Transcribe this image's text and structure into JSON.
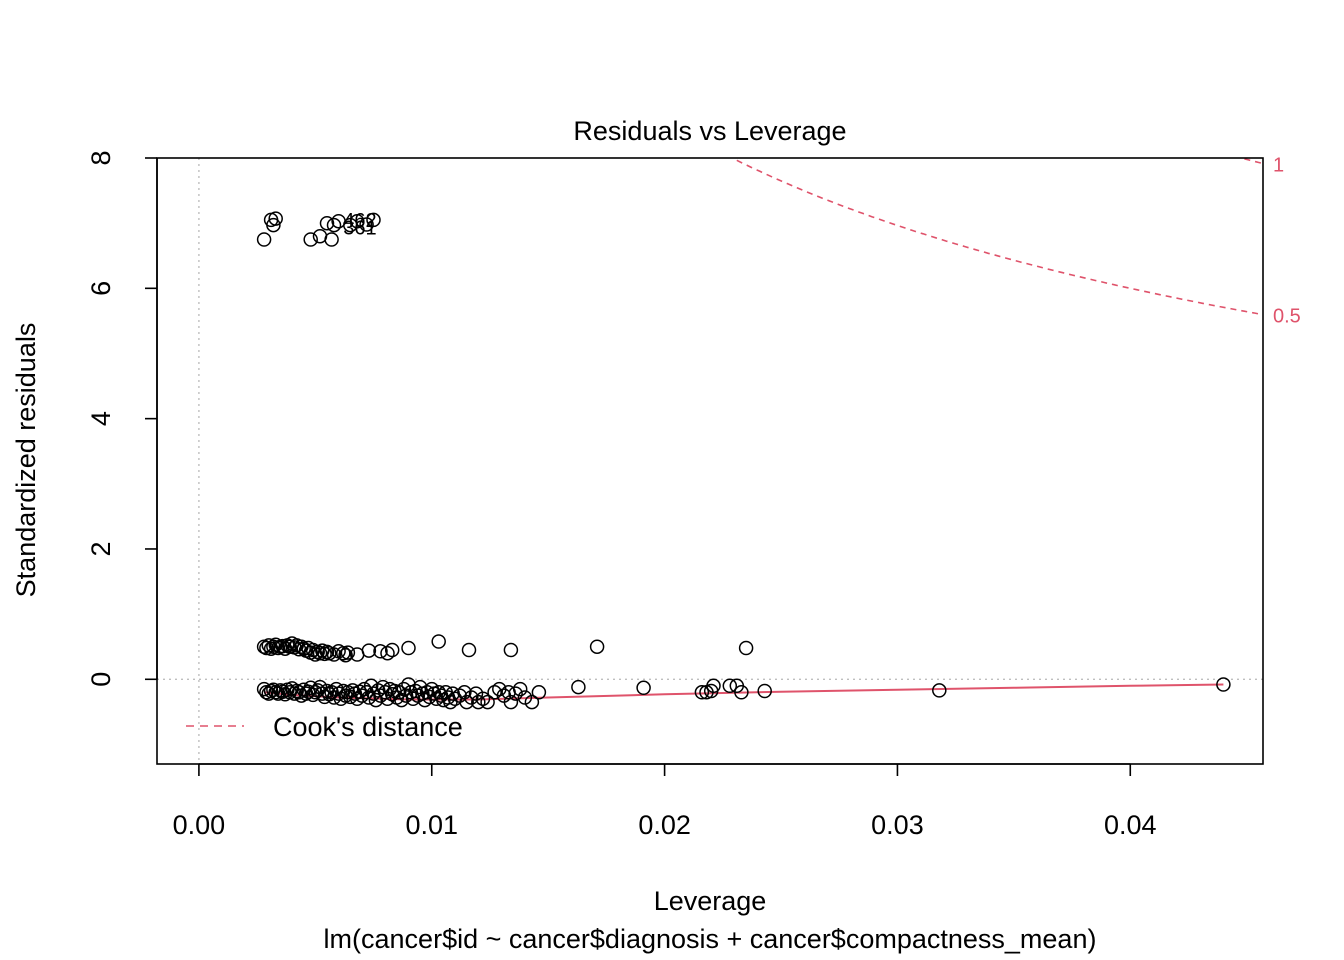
{
  "chart_data": {
    "type": "scatter",
    "title": "Residuals vs Leverage",
    "xlabel": "Leverage",
    "sublabel": "lm(cancer$id ~ cancer$diagnosis + cancer$compactness_mean)",
    "ylabel": "Standardized residuals",
    "xlim": [
      -0.0018,
      0.0457
    ],
    "ylim": [
      -1.3,
      8.0
    ],
    "x_ticks": [
      {
        "value": 0.0,
        "label": "0.00"
      },
      {
        "value": 0.01,
        "label": "0.01"
      },
      {
        "value": 0.02,
        "label": "0.02"
      },
      {
        "value": 0.03,
        "label": "0.03"
      },
      {
        "value": 0.04,
        "label": "0.04"
      }
    ],
    "y_ticks": [
      {
        "value": 0,
        "label": "0"
      },
      {
        "value": 2,
        "label": "2"
      },
      {
        "value": 4,
        "label": "4"
      },
      {
        "value": 6,
        "label": "6"
      },
      {
        "value": 8,
        "label": "8"
      }
    ],
    "legend": {
      "label": "Cook's distance",
      "position": "bottom-left"
    },
    "cook_contours": [
      {
        "level": 0.5,
        "label": "0.5"
      },
      {
        "level": 1,
        "label": "1"
      }
    ],
    "num_params": 3,
    "point_labels": [
      {
        "x": 0.0062,
        "y": 7.05,
        "label": "462"
      },
      {
        "x": 0.0062,
        "y": 6.93,
        "label": "361"
      }
    ],
    "smoother": {
      "x": [
        0.0028,
        0.004,
        0.006,
        0.009,
        0.012,
        0.015,
        0.02,
        0.025,
        0.03,
        0.035,
        0.04,
        0.044
      ],
      "y": [
        -0.2,
        -0.24,
        -0.28,
        -0.31,
        -0.31,
        -0.28,
        -0.23,
        -0.19,
        -0.16,
        -0.13,
        -0.1,
        -0.08
      ]
    },
    "points": [
      {
        "x": 0.0028,
        "y": 6.75
      },
      {
        "x": 0.0031,
        "y": 7.05
      },
      {
        "x": 0.0032,
        "y": 6.97
      },
      {
        "x": 0.0033,
        "y": 7.07
      },
      {
        "x": 0.0048,
        "y": 6.75
      },
      {
        "x": 0.0052,
        "y": 6.8
      },
      {
        "x": 0.0055,
        "y": 7.0
      },
      {
        "x": 0.0057,
        "y": 6.75
      },
      {
        "x": 0.0058,
        "y": 6.97
      },
      {
        "x": 0.006,
        "y": 7.03
      },
      {
        "x": 0.0065,
        "y": 6.97
      },
      {
        "x": 0.0068,
        "y": 7.03
      },
      {
        "x": 0.0072,
        "y": 6.98
      },
      {
        "x": 0.0075,
        "y": 7.05
      },
      {
        "x": 0.0028,
        "y": 0.5
      },
      {
        "x": 0.0029,
        "y": 0.48
      },
      {
        "x": 0.003,
        "y": 0.52
      },
      {
        "x": 0.0031,
        "y": 0.47
      },
      {
        "x": 0.0032,
        "y": 0.5
      },
      {
        "x": 0.0033,
        "y": 0.53
      },
      {
        "x": 0.0034,
        "y": 0.48
      },
      {
        "x": 0.0035,
        "y": 0.5
      },
      {
        "x": 0.0036,
        "y": 0.51
      },
      {
        "x": 0.0037,
        "y": 0.47
      },
      {
        "x": 0.0038,
        "y": 0.52
      },
      {
        "x": 0.0039,
        "y": 0.5
      },
      {
        "x": 0.004,
        "y": 0.55
      },
      {
        "x": 0.0041,
        "y": 0.49
      },
      {
        "x": 0.0042,
        "y": 0.52
      },
      {
        "x": 0.0043,
        "y": 0.46
      },
      {
        "x": 0.0044,
        "y": 0.5
      },
      {
        "x": 0.0045,
        "y": 0.47
      },
      {
        "x": 0.0046,
        "y": 0.44
      },
      {
        "x": 0.0047,
        "y": 0.48
      },
      {
        "x": 0.0048,
        "y": 0.41
      },
      {
        "x": 0.0049,
        "y": 0.45
      },
      {
        "x": 0.005,
        "y": 0.38
      },
      {
        "x": 0.0051,
        "y": 0.42
      },
      {
        "x": 0.0052,
        "y": 0.4
      },
      {
        "x": 0.0053,
        "y": 0.44
      },
      {
        "x": 0.0054,
        "y": 0.39
      },
      {
        "x": 0.0055,
        "y": 0.42
      },
      {
        "x": 0.0056,
        "y": 0.4
      },
      {
        "x": 0.0058,
        "y": 0.38
      },
      {
        "x": 0.006,
        "y": 0.43
      },
      {
        "x": 0.0062,
        "y": 0.4
      },
      {
        "x": 0.0063,
        "y": 0.37
      },
      {
        "x": 0.0064,
        "y": 0.41
      },
      {
        "x": 0.0068,
        "y": 0.38
      },
      {
        "x": 0.0073,
        "y": 0.44
      },
      {
        "x": 0.0078,
        "y": 0.43
      },
      {
        "x": 0.0081,
        "y": 0.4
      },
      {
        "x": 0.0083,
        "y": 0.45
      },
      {
        "x": 0.009,
        "y": 0.48
      },
      {
        "x": 0.0103,
        "y": 0.58
      },
      {
        "x": 0.0116,
        "y": 0.45
      },
      {
        "x": 0.0134,
        "y": 0.45
      },
      {
        "x": 0.0171,
        "y": 0.5
      },
      {
        "x": 0.0235,
        "y": 0.48
      },
      {
        "x": 0.0028,
        "y": -0.15
      },
      {
        "x": 0.0029,
        "y": -0.2
      },
      {
        "x": 0.003,
        "y": -0.22
      },
      {
        "x": 0.0031,
        "y": -0.18
      },
      {
        "x": 0.0032,
        "y": -0.16
      },
      {
        "x": 0.0033,
        "y": -0.2
      },
      {
        "x": 0.0034,
        "y": -0.22
      },
      {
        "x": 0.0035,
        "y": -0.17
      },
      {
        "x": 0.0036,
        "y": -0.19
      },
      {
        "x": 0.0037,
        "y": -0.23
      },
      {
        "x": 0.0038,
        "y": -0.16
      },
      {
        "x": 0.0039,
        "y": -0.2
      },
      {
        "x": 0.004,
        "y": -0.14
      },
      {
        "x": 0.0041,
        "y": -0.22
      },
      {
        "x": 0.0042,
        "y": -0.18
      },
      {
        "x": 0.0043,
        "y": -0.2
      },
      {
        "x": 0.0044,
        "y": -0.25
      },
      {
        "x": 0.0045,
        "y": -0.16
      },
      {
        "x": 0.0046,
        "y": -0.22
      },
      {
        "x": 0.0047,
        "y": -0.19
      },
      {
        "x": 0.0048,
        "y": -0.13
      },
      {
        "x": 0.0049,
        "y": -0.24
      },
      {
        "x": 0.005,
        "y": -0.2
      },
      {
        "x": 0.0051,
        "y": -0.17
      },
      {
        "x": 0.0052,
        "y": -0.12
      },
      {
        "x": 0.0053,
        "y": -0.22
      },
      {
        "x": 0.0054,
        "y": -0.27
      },
      {
        "x": 0.0055,
        "y": -0.18
      },
      {
        "x": 0.0056,
        "y": -0.23
      },
      {
        "x": 0.0057,
        "y": -0.2
      },
      {
        "x": 0.0058,
        "y": -0.28
      },
      {
        "x": 0.0059,
        "y": -0.15
      },
      {
        "x": 0.006,
        "y": -0.22
      },
      {
        "x": 0.0061,
        "y": -0.3
      },
      {
        "x": 0.0062,
        "y": -0.18
      },
      {
        "x": 0.0063,
        "y": -0.25
      },
      {
        "x": 0.0064,
        "y": -0.2
      },
      {
        "x": 0.0065,
        "y": -0.27
      },
      {
        "x": 0.0066,
        "y": -0.17
      },
      {
        "x": 0.0067,
        "y": -0.22
      },
      {
        "x": 0.0068,
        "y": -0.3
      },
      {
        "x": 0.0069,
        "y": -0.19
      },
      {
        "x": 0.007,
        "y": -0.25
      },
      {
        "x": 0.0071,
        "y": -0.15
      },
      {
        "x": 0.0072,
        "y": -0.2
      },
      {
        "x": 0.0073,
        "y": -0.28
      },
      {
        "x": 0.0074,
        "y": -0.1
      },
      {
        "x": 0.0075,
        "y": -0.22
      },
      {
        "x": 0.0076,
        "y": -0.32
      },
      {
        "x": 0.0077,
        "y": -0.17
      },
      {
        "x": 0.0078,
        "y": -0.25
      },
      {
        "x": 0.0079,
        "y": -0.12
      },
      {
        "x": 0.008,
        "y": -0.2
      },
      {
        "x": 0.0081,
        "y": -0.3
      },
      {
        "x": 0.0082,
        "y": -0.15
      },
      {
        "x": 0.0083,
        "y": -0.23
      },
      {
        "x": 0.0084,
        "y": -0.18
      },
      {
        "x": 0.0085,
        "y": -0.28
      },
      {
        "x": 0.0086,
        "y": -0.2
      },
      {
        "x": 0.0087,
        "y": -0.32
      },
      {
        "x": 0.0088,
        "y": -0.15
      },
      {
        "x": 0.0089,
        "y": -0.25
      },
      {
        "x": 0.009,
        "y": -0.08
      },
      {
        "x": 0.0091,
        "y": -0.2
      },
      {
        "x": 0.0092,
        "y": -0.3
      },
      {
        "x": 0.0093,
        "y": -0.18
      },
      {
        "x": 0.0094,
        "y": -0.25
      },
      {
        "x": 0.0095,
        "y": -0.12
      },
      {
        "x": 0.0096,
        "y": -0.22
      },
      {
        "x": 0.0097,
        "y": -0.32
      },
      {
        "x": 0.0098,
        "y": -0.2
      },
      {
        "x": 0.0099,
        "y": -0.27
      },
      {
        "x": 0.01,
        "y": -0.15
      },
      {
        "x": 0.0101,
        "y": -0.22
      },
      {
        "x": 0.0102,
        "y": -0.3
      },
      {
        "x": 0.0103,
        "y": -0.2
      },
      {
        "x": 0.0104,
        "y": -0.25
      },
      {
        "x": 0.0105,
        "y": -0.32
      },
      {
        "x": 0.0106,
        "y": -0.2
      },
      {
        "x": 0.0107,
        "y": -0.28
      },
      {
        "x": 0.0108,
        "y": -0.35
      },
      {
        "x": 0.0109,
        "y": -0.22
      },
      {
        "x": 0.011,
        "y": -0.3
      },
      {
        "x": 0.0112,
        "y": -0.25
      },
      {
        "x": 0.0114,
        "y": -0.2
      },
      {
        "x": 0.0115,
        "y": -0.35
      },
      {
        "x": 0.0117,
        "y": -0.28
      },
      {
        "x": 0.0119,
        "y": -0.22
      },
      {
        "x": 0.012,
        "y": -0.35
      },
      {
        "x": 0.0122,
        "y": -0.3
      },
      {
        "x": 0.0124,
        "y": -0.35
      },
      {
        "x": 0.0127,
        "y": -0.2
      },
      {
        "x": 0.0129,
        "y": -0.15
      },
      {
        "x": 0.0131,
        "y": -0.25
      },
      {
        "x": 0.0133,
        "y": -0.2
      },
      {
        "x": 0.0134,
        "y": -0.35
      },
      {
        "x": 0.0136,
        "y": -0.22
      },
      {
        "x": 0.0138,
        "y": -0.15
      },
      {
        "x": 0.014,
        "y": -0.28
      },
      {
        "x": 0.0143,
        "y": -0.35
      },
      {
        "x": 0.0146,
        "y": -0.2
      },
      {
        "x": 0.0163,
        "y": -0.12
      },
      {
        "x": 0.0191,
        "y": -0.13
      },
      {
        "x": 0.0216,
        "y": -0.2
      },
      {
        "x": 0.0218,
        "y": -0.2
      },
      {
        "x": 0.022,
        "y": -0.18
      },
      {
        "x": 0.0221,
        "y": -0.1
      },
      {
        "x": 0.0228,
        "y": -0.1
      },
      {
        "x": 0.0231,
        "y": -0.1
      },
      {
        "x": 0.0233,
        "y": -0.2
      },
      {
        "x": 0.0243,
        "y": -0.18
      },
      {
        "x": 0.0318,
        "y": -0.17
      },
      {
        "x": 0.044,
        "y": -0.08
      }
    ]
  }
}
